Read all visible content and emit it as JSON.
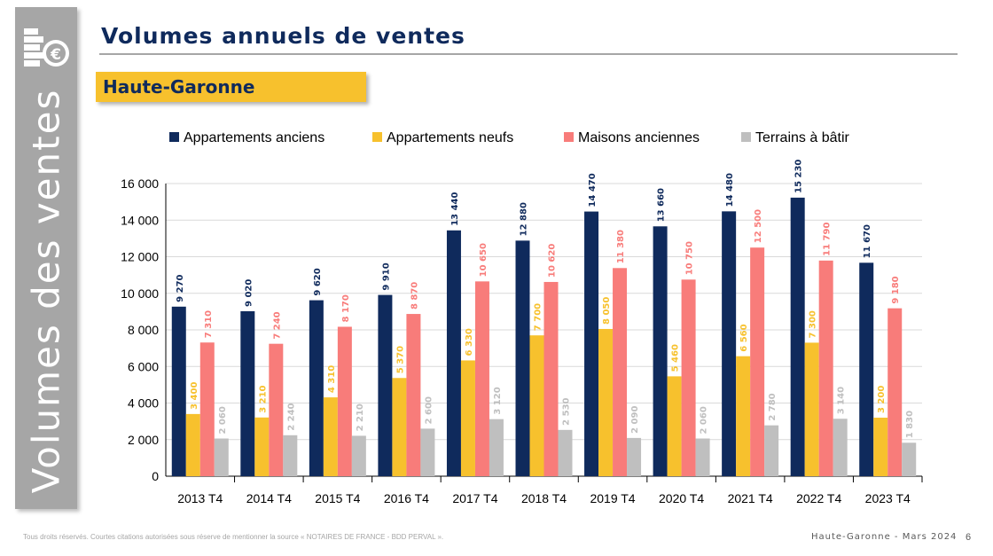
{
  "sidebar": {
    "title": "Volumes des ventes",
    "icon": "coins-euro-icon"
  },
  "header": {
    "title": "Volumes annuels de ventes"
  },
  "region": {
    "label": "Haute-Garonne"
  },
  "footer": {
    "note": "Tous droits réservés. Courtes citations autorisées sous réserve de mentionner la source « NOTAIRES DE FRANCE - BDD PERVAL ».",
    "region_date": "Haute-Garonne - Mars 2024",
    "page": "6"
  },
  "colors": {
    "navy": "#0f2a5c",
    "yellow": "#f7c12d",
    "salmon": "#f87c7a",
    "gray": "#bfbfbf",
    "sidebar": "#a6a6a6"
  },
  "chart_data": {
    "type": "bar",
    "categories": [
      "2013 T4",
      "2014 T4",
      "2015 T4",
      "2016 T4",
      "2017 T4",
      "2018 T4",
      "2019 T4",
      "2020 T4",
      "2021 T4",
      "2022 T4",
      "2023 T4"
    ],
    "series": [
      {
        "name": "Appartements anciens",
        "color": "#0f2a5c",
        "label_color": "#0f2a5c",
        "values": [
          9270,
          9020,
          9620,
          9910,
          13440,
          12880,
          14470,
          13660,
          14480,
          15230,
          11670
        ],
        "labels": [
          "9 270",
          "9 020",
          "9 620",
          "9 910",
          "13 440",
          "12 880",
          "14 470",
          "13 660",
          "14 480",
          "15 230",
          "11 670"
        ]
      },
      {
        "name": "Appartements neufs",
        "color": "#f7c12d",
        "label_color": "#f7c12d",
        "values": [
          3400,
          3210,
          4310,
          5370,
          6330,
          7700,
          8050,
          5460,
          6560,
          7300,
          3200
        ],
        "labels": [
          "3 400",
          "3 210",
          "4 310",
          "5 370",
          "6 330",
          "7 700",
          "8 050",
          "5 460",
          "6 560",
          "7 300",
          "3 200"
        ]
      },
      {
        "name": "Maisons anciennes",
        "color": "#f87c7a",
        "label_color": "#f87c7a",
        "values": [
          7310,
          7240,
          8170,
          8870,
          10650,
          10620,
          11380,
          10750,
          12500,
          11790,
          9180
        ],
        "labels": [
          "7 310",
          "7 240",
          "8 170",
          "8 870",
          "10 650",
          "10 620",
          "11 380",
          "10 750",
          "12 500",
          "11 790",
          "9 180"
        ]
      },
      {
        "name": "Terrains à bâtir",
        "color": "#bfbfbf",
        "label_color": "#bfbfbf",
        "values": [
          2060,
          2240,
          2210,
          2600,
          3120,
          2530,
          2090,
          2060,
          2780,
          3140,
          1830
        ],
        "labels": [
          "2 060",
          "2 240",
          "2 210",
          "2 600",
          "3 120",
          "2 530",
          "2 090",
          "2 060",
          "2 780",
          "3 140",
          "1 830"
        ]
      }
    ],
    "yticks": [
      0,
      2000,
      4000,
      6000,
      8000,
      10000,
      12000,
      14000,
      16000
    ],
    "ytick_labels": [
      "0",
      "2 000",
      "4 000",
      "6 000",
      "8 000",
      "10 000",
      "12 000",
      "14 000",
      "16 000"
    ],
    "ylim": [
      0,
      16000
    ],
    "grid": true,
    "legend_position": "top"
  }
}
